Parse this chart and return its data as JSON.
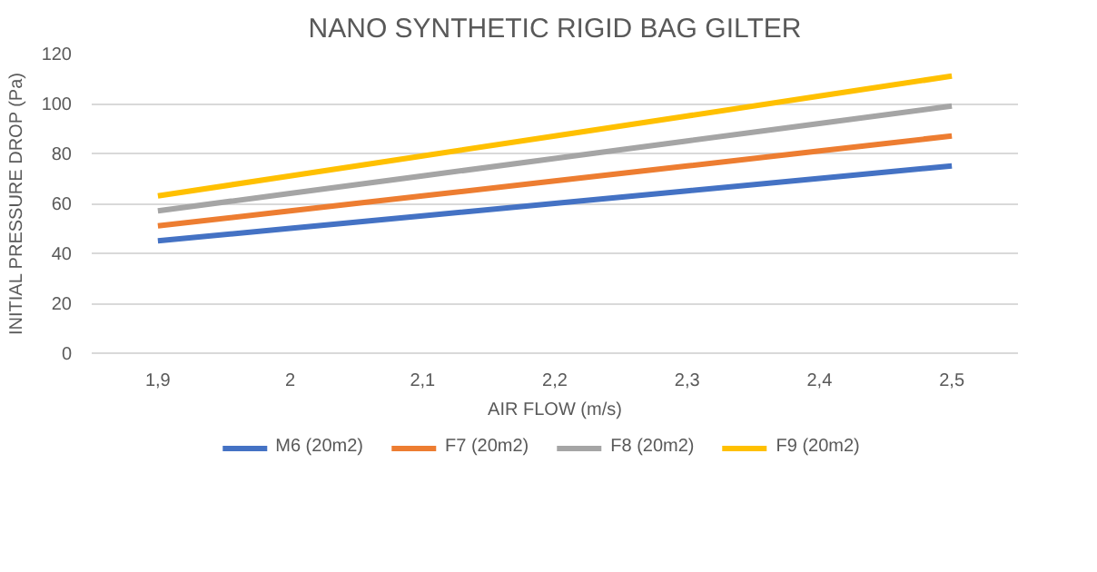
{
  "chart_data": {
    "type": "line",
    "title": "NANO SYNTHETIC RIGID BAG GILTER",
    "xlabel": "AIR FLOW (m/s)",
    "ylabel": "INITIAL PRESSURE DROP (Pa)",
    "categories": [
      "1,9",
      "2",
      "2,1",
      "2,2",
      "2,3",
      "2,4",
      "2,5"
    ],
    "series": [
      {
        "name": "M6 (20m2)",
        "color": "#4472c4",
        "values": [
          45,
          50,
          55,
          60,
          65,
          70,
          75
        ]
      },
      {
        "name": "F7 (20m2)",
        "color": "#ed7d31",
        "values": [
          51,
          57,
          63,
          69,
          75,
          81,
          87
        ]
      },
      {
        "name": "F8 (20m2)",
        "color": "#a5a5a5",
        "values": [
          57,
          64,
          71,
          78,
          85,
          92,
          99
        ]
      },
      {
        "name": "F9 (20m2)",
        "color": "#ffc000",
        "values": [
          63,
          71,
          79,
          87,
          95,
          103,
          111
        ]
      }
    ],
    "ylim": [
      0,
      120
    ],
    "yticks": [
      0,
      20,
      40,
      60,
      80,
      100,
      120
    ],
    "grid": "y",
    "legend": "bottom",
    "marker": "none",
    "line_style": "solid"
  }
}
